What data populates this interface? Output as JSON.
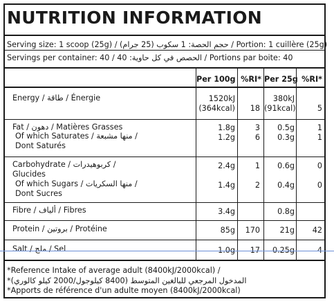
{
  "title": "NUTRITION INFORMATION",
  "serving_size": "Serving size: 1 scoop (25g) / حجم الحصة: 1 سكوب (25 جرام) / Portion: 1 cuillère (25g)",
  "servings_per_container": "Servings per container: 40 / الحصص في كل حاوية: 40 / Portions par boite: 40",
  "headers": {
    "per100": "Per 100g",
    "ri1": "%RI*",
    "per25": "Per 25g",
    "ri2": "%RI*"
  },
  "rows": {
    "energy": {
      "label": "Energy / طاقة / Énergie",
      "per100_a": "1520kJ",
      "per100_b": "(364kcal)",
      "ri1": "18",
      "per25_a": "380kJ",
      "per25_b": "(91kcal)",
      "ri2": "5"
    },
    "fat": {
      "label": "Fat / دهون / Matières Grasses",
      "per100": "1.8g",
      "ri1": "3",
      "per25": "0.5g",
      "ri2": "1"
    },
    "sat": {
      "label": "Of which Saturates / منها مشبعة /",
      "label2": "Dont Saturés",
      "per100": "1.2g",
      "ri1": "6",
      "per25": "0.3g",
      "ri2": "1"
    },
    "carb": {
      "label": "Carbohydrate / كربوهيدرات /",
      "label2": "Glucides",
      "per100": "2.4g",
      "ri1": "1",
      "per25": "0.6g",
      "ri2": "0"
    },
    "sugars": {
      "label": "Of which Sugars / منها السكريات /",
      "label2": "Dont Sucres",
      "per100": "1.4g",
      "ri1": "2",
      "per25": "0.4g",
      "ri2": "0"
    },
    "fibre": {
      "label": "Fibre / ألياف / Fibres",
      "per100": "3.4g",
      "per25": "0.8g"
    },
    "protein": {
      "label": "Protein / بروتين / Protéine",
      "per100": "85g",
      "ri1": "170",
      "per25": "21g",
      "ri2": "42"
    },
    "salt": {
      "label": "Salt / ملح / Sel",
      "per100": "1.0g",
      "ri1": "17",
      "per25": "0.25g",
      "ri2": "4"
    }
  },
  "footnote": {
    "line1": "*Reference Intake of average adult (8400kJ/2000kcal) /",
    "line2": "*المدخول المرجعي للبالغين المتوسط (8400 كيلوجول/2000 كيلو كالوري)",
    "line3": "*Apports de référence d'un adulte moyen (8400kJ/2000kcal)"
  }
}
